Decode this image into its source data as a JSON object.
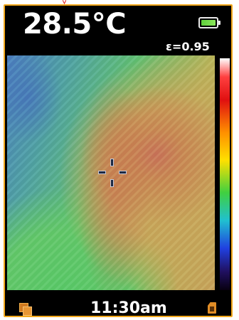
{
  "header": {
    "temperature": "28.5°C",
    "emissivity": "ε=0.95"
  },
  "footer": {
    "time": "11:30am"
  },
  "icons": {
    "battery": "battery-icon",
    "gallery": "gallery-icon",
    "sd_card": "sd-card-icon",
    "crosshair": "crosshair-icon"
  },
  "colors": {
    "frame": "#f2a81c",
    "battery_level": "#5fd03c",
    "icon_accent": "#e18d26"
  },
  "battery": {
    "level": 1.0
  }
}
